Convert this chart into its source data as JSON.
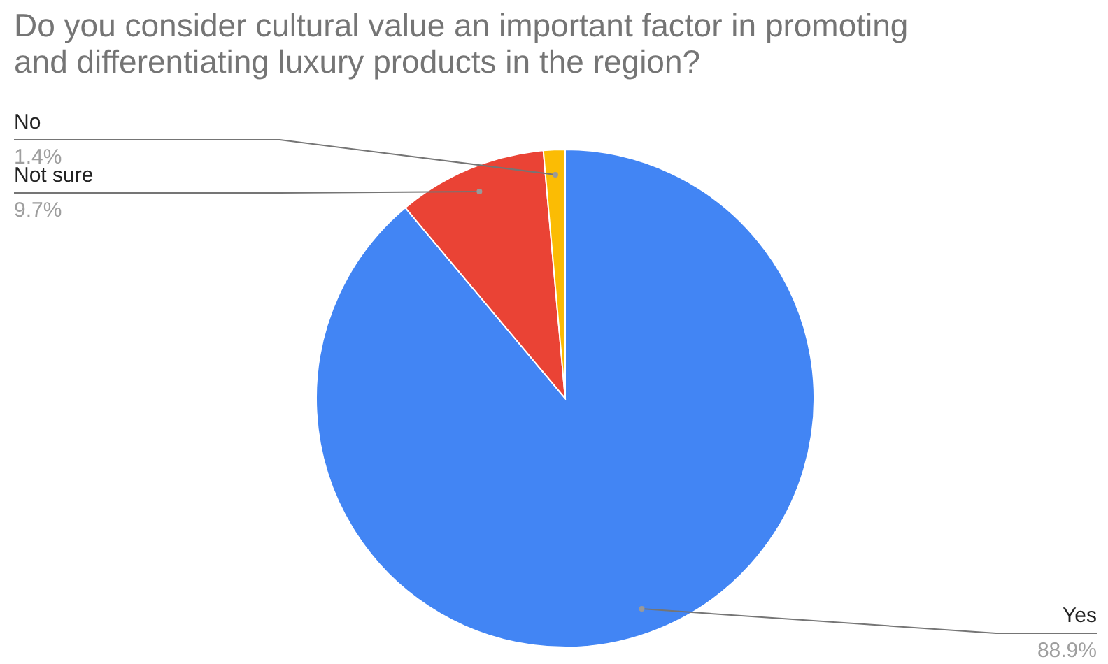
{
  "chart_data": {
    "type": "pie",
    "title": "Do you consider cultural value an important factor in promoting\nand differentiating luxury products in the region?",
    "categories": [
      "Yes",
      "Not sure",
      "No"
    ],
    "values": [
      88.9,
      9.7,
      1.4
    ],
    "colors": [
      "#4285f4",
      "#ea4335",
      "#fbbc04"
    ],
    "value_labels": [
      "88.9%",
      "9.7%",
      "1.4%"
    ]
  }
}
